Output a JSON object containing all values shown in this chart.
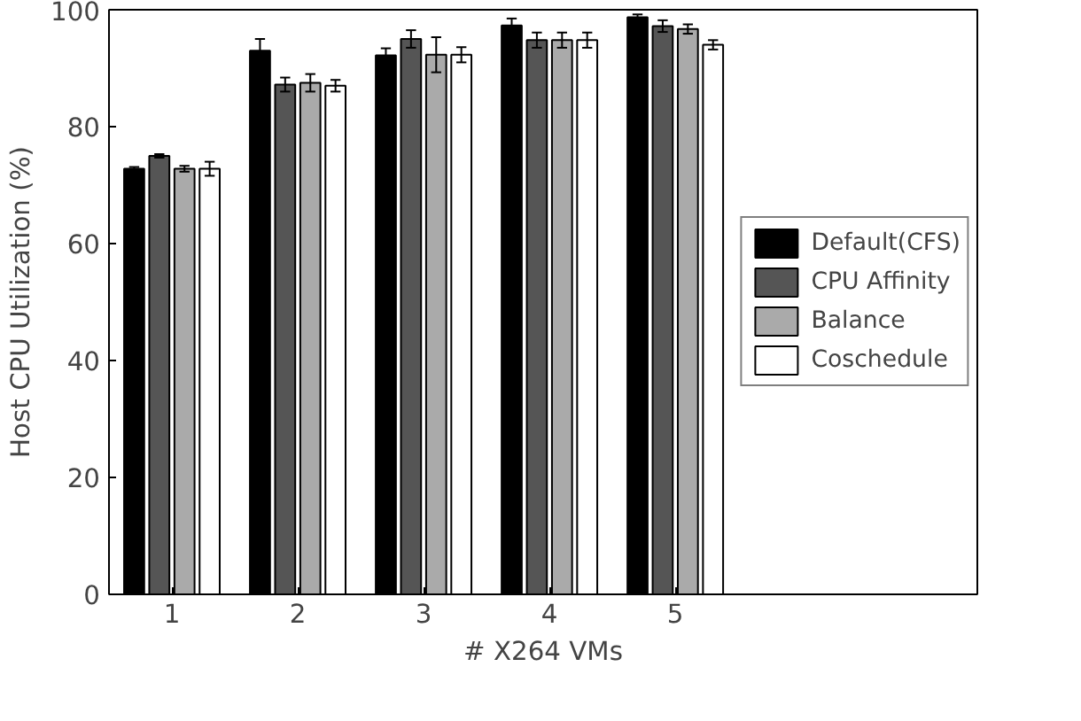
{
  "chart_data": {
    "type": "bar",
    "xlabel": "# X264 VMs",
    "ylabel": "Host CPU Utilization (%)",
    "categories": [
      "1",
      "2",
      "3",
      "4",
      "5"
    ],
    "series": [
      {
        "name": "Default(CFS)",
        "color": "#000000",
        "values": [
          72.8,
          93,
          92.2,
          97.3,
          98.7
        ],
        "errors": [
          0.3,
          2,
          1.2,
          1.2,
          0.5
        ]
      },
      {
        "name": "CPU Affinity",
        "color": "#555555",
        "values": [
          75,
          87.2,
          95,
          94.8,
          97.2
        ],
        "errors": [
          0.3,
          1.2,
          1.5,
          1.3,
          1
        ]
      },
      {
        "name": "Balance",
        "color": "#aaaaaa",
        "values": [
          72.8,
          87.5,
          92.3,
          94.8,
          96.7
        ],
        "errors": [
          0.5,
          1.5,
          3,
          1.3,
          0.8
        ]
      },
      {
        "name": "Coschedule",
        "color": "#ffffff",
        "values": [
          72.8,
          87,
          92.3,
          94.8,
          94
        ],
        "errors": [
          1.2,
          1,
          1.3,
          1.3,
          0.8
        ]
      }
    ],
    "ylim": [
      0,
      100
    ],
    "yticks": [
      0,
      20,
      40,
      60,
      80,
      100
    ],
    "grid": false,
    "legend": "right"
  }
}
